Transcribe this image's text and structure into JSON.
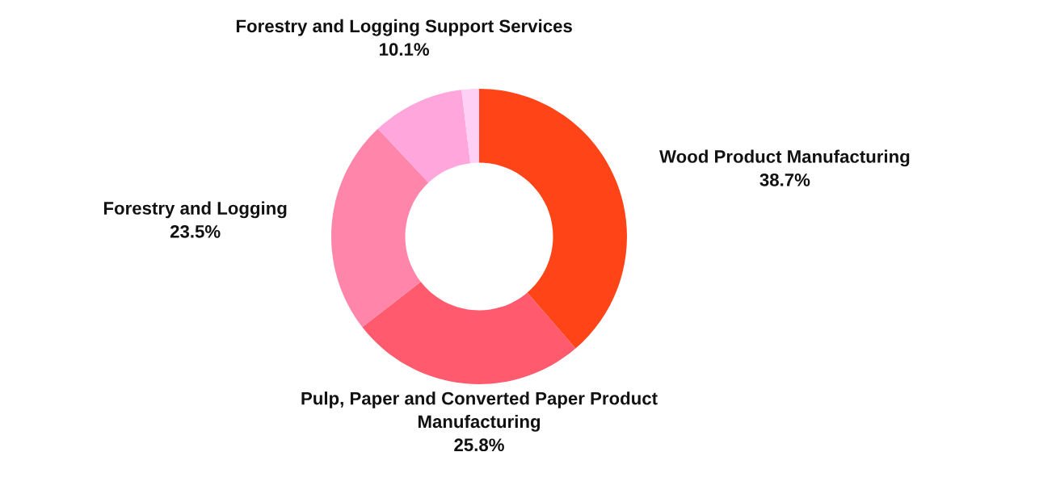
{
  "chart_data": {
    "type": "donut",
    "categories": [
      "Wood Product Manufacturing",
      "Pulp, Paper and Converted Paper Product\nManufacturing",
      "Forestry and Logging",
      "Forestry and Logging Support Services",
      null
    ],
    "values": [
      38.7,
      25.8,
      23.5,
      10.1,
      1.9
    ],
    "colors": [
      "#ff4517",
      "#ff5a6e",
      "#ff85ab",
      "#ffa6dc",
      "#ffd0f5"
    ],
    "value_labels": [
      "38.7%",
      "25.8%",
      "23.5%",
      "10.1%",
      null
    ],
    "legend": false
  }
}
